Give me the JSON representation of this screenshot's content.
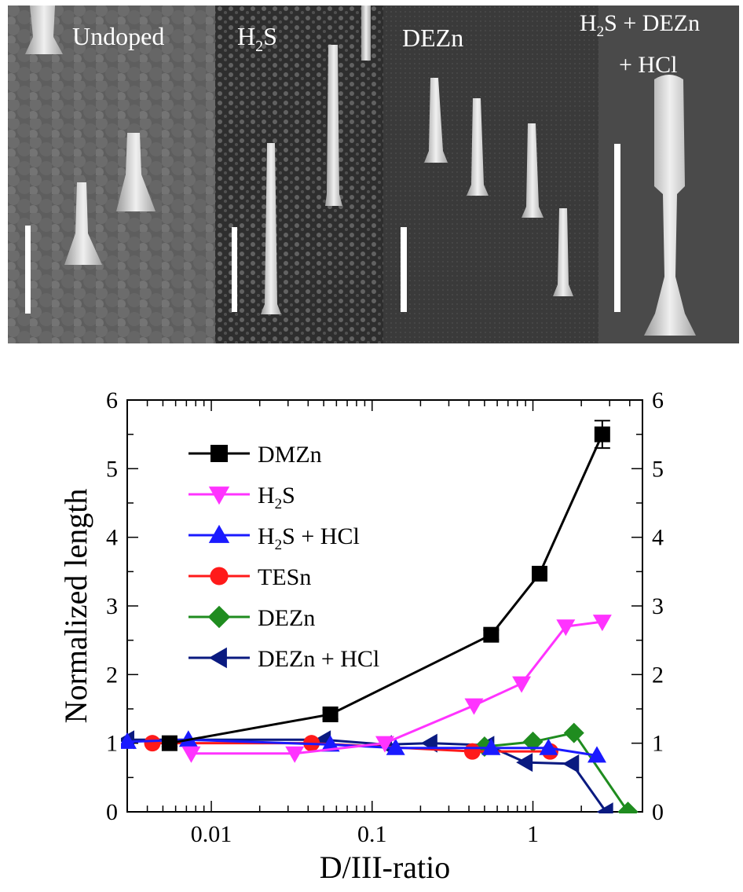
{
  "panels": [
    {
      "label": "Undoped",
      "label_sub": "",
      "label_rest": ""
    },
    {
      "label": "H",
      "label_sub": "2",
      "label_rest": "S"
    },
    {
      "label": "DEZn",
      "label_sub": "",
      "label_rest": ""
    },
    {
      "label": "H",
      "label_sub": "2",
      "label_rest": "S + DEZn",
      "label_line2": "+ HCl"
    }
  ],
  "chart_data": {
    "type": "line",
    "xlabel": "D/III-ratio",
    "ylabel": "Normalized length",
    "x_scale": "log",
    "xlim": [
      0.003,
      4.8
    ],
    "ylim": [
      0,
      6
    ],
    "x_tick_labels": [
      "0.01",
      "0.1",
      "1"
    ],
    "y_tick_labels": [
      "0",
      "1",
      "2",
      "3",
      "4",
      "5",
      "6"
    ],
    "legend_position": "top-left",
    "series": [
      {
        "name": "DMZn",
        "legend_main": "DMZn",
        "legend_sub": "",
        "legend_rest": "",
        "color": "#000000",
        "marker": "square",
        "x": [
          0.0055,
          0.055,
          0.55,
          1.1,
          2.7
        ],
        "y": [
          1.0,
          1.42,
          2.58,
          3.47,
          5.5
        ],
        "yerr": [
          0.05,
          0.07,
          0.07,
          0.08,
          0.2
        ]
      },
      {
        "name": "H2S",
        "legend_main": "H",
        "legend_sub": "2",
        "legend_rest": "S",
        "color": "#ff33ff",
        "marker": "triangle-down",
        "x": [
          0.0075,
          0.033,
          0.12,
          0.43,
          0.85,
          1.6,
          2.7
        ],
        "y": [
          0.85,
          0.85,
          1.0,
          1.55,
          1.87,
          2.7,
          2.77
        ]
      },
      {
        "name": "H2S + HCl",
        "legend_main": "H",
        "legend_sub": "2",
        "legend_rest": "S + HCl",
        "color": "#1a1aff",
        "marker": "triangle-up",
        "x": [
          0.003,
          0.0072,
          0.055,
          0.14,
          0.55,
          1.25,
          2.5
        ],
        "y": [
          1.02,
          1.05,
          0.98,
          0.93,
          0.93,
          0.93,
          0.82
        ]
      },
      {
        "name": "TESn",
        "legend_main": "TESn",
        "legend_sub": "",
        "legend_rest": "",
        "color": "#ff1a1a",
        "marker": "circle",
        "x": [
          0.0043,
          0.042,
          0.42,
          1.28
        ],
        "y": [
          1.0,
          1.0,
          0.88,
          0.88
        ]
      },
      {
        "name": "DEZn",
        "legend_main": "DEZn",
        "legend_sub": "",
        "legend_rest": "",
        "color": "#1f8c1f",
        "marker": "diamond",
        "x": [
          0.5,
          1.0,
          1.8,
          3.9
        ],
        "y": [
          0.95,
          1.02,
          1.15,
          0.0
        ]
      },
      {
        "name": "DEZn + HCl",
        "legend_main": "DEZn + HCl",
        "legend_sub": "",
        "legend_rest": "",
        "color": "#0a1a80",
        "marker": "triangle-left",
        "x": [
          0.003,
          0.05,
          0.12,
          0.23,
          0.52,
          0.9,
          1.75,
          2.85
        ],
        "y": [
          1.05,
          1.05,
          0.98,
          1.0,
          0.97,
          0.72,
          0.7,
          0.0
        ]
      }
    ]
  }
}
